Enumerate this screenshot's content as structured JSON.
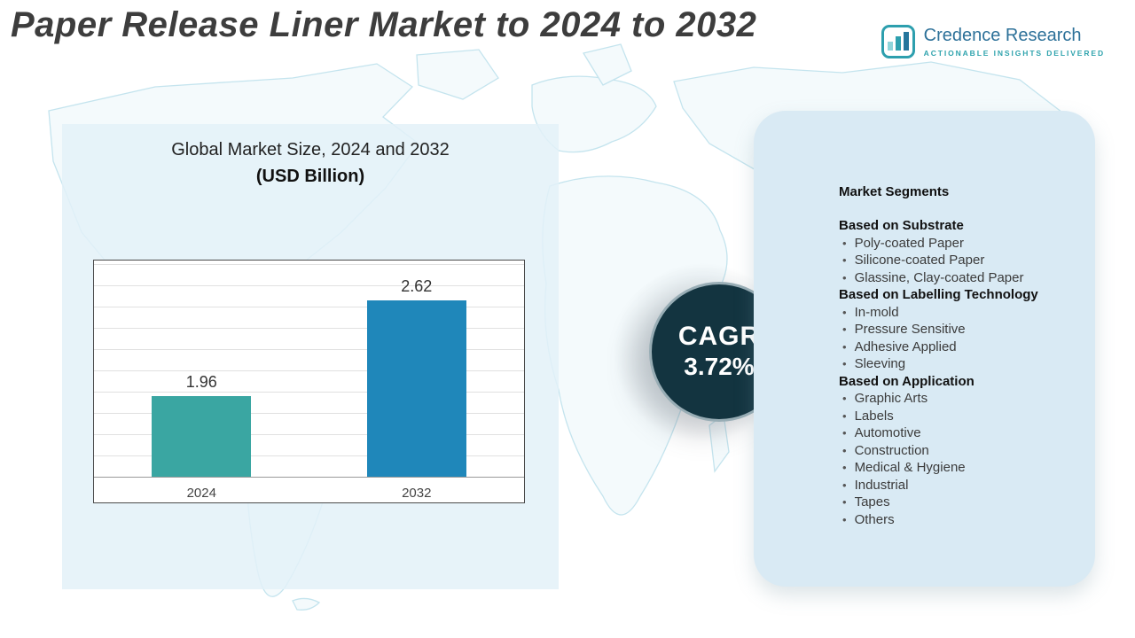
{
  "header": {
    "title": "Paper Release Liner Market to 2024 to 2032",
    "logo": {
      "name": "Credence Research",
      "tagline": "Actionable Insights Delivered"
    }
  },
  "chart_data": {
    "type": "bar",
    "title": "Global Market Size, 2024 and 2032",
    "subtitle": "(USD Billion)",
    "categories": [
      "2024",
      "2032"
    ],
    "values": [
      1.96,
      2.62
    ],
    "value_labels": [
      "1.96",
      "2.62"
    ],
    "bar_colors": [
      "#3aa6a2",
      "#1f87ba"
    ],
    "xlabel": "",
    "ylabel": "USD Billion",
    "grid": true,
    "legend": "none"
  },
  "cagr": {
    "label": "CAGR",
    "value": "3.72%"
  },
  "segments": {
    "heading": "Market Segments",
    "groups": [
      {
        "heading": "Based on Substrate",
        "items": [
          "Poly-coated Paper",
          "Silicone-coated Paper",
          "Glassine, Clay-coated Paper"
        ]
      },
      {
        "heading": "Based on Labelling Technology",
        "items": [
          "In-mold",
          "Pressure Sensitive",
          "Adhesive Applied",
          "Sleeving"
        ]
      },
      {
        "heading": "Based on Application",
        "items": [
          "Graphic Arts",
          "Labels",
          "Automotive",
          "Construction",
          "Medical & Hygiene",
          "Industrial",
          "Tapes",
          "Others"
        ]
      }
    ]
  },
  "colors": {
    "bar_2024": "#3aa6a2",
    "bar_2032": "#1f87ba",
    "cagr_badge_bg": "#133440",
    "segments_panel_bg": "#d9eaf4",
    "chart_panel_bg": "#e3f1f8",
    "map_line": "#c4e4ee",
    "logo_blue": "#2d7199",
    "logo_teal": "#2fa3ad"
  }
}
